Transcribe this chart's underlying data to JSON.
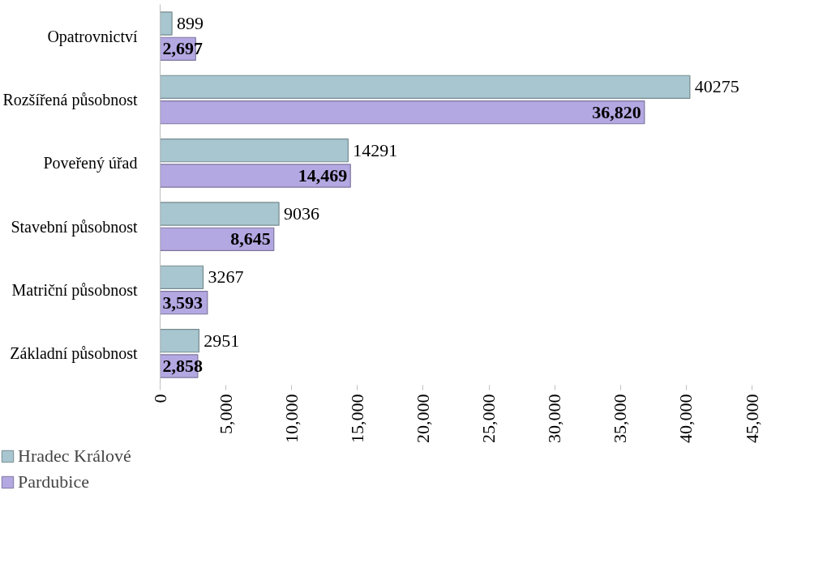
{
  "chart_data": {
    "type": "bar",
    "orientation": "horizontal",
    "categories": [
      "Opatrovnictví",
      "Rozšířená působnost",
      "Poveřený úřad",
      "Stavební působnost",
      "Matriční působnost",
      "Základní působnost"
    ],
    "series": [
      {
        "name": "Hradec Králové",
        "color": "#a8c6cf",
        "values": [
          899,
          40275,
          14291,
          9036,
          3267,
          2951
        ],
        "value_labels": [
          "899",
          "40275",
          "14291",
          "9036",
          "3267",
          "2951"
        ]
      },
      {
        "name": "Pardubice",
        "color": "#b4a8e2",
        "values": [
          2697,
          36820,
          14469,
          8645,
          3593,
          2858
        ],
        "value_labels": [
          "2,697",
          "36,820",
          "14,469",
          "8,645",
          "3,593",
          "2,858"
        ]
      }
    ],
    "xlim": [
      0,
      45000
    ],
    "xticks": [
      {
        "value": 0,
        "label": "0"
      },
      {
        "value": 5000,
        "label": "5,000"
      },
      {
        "value": 10000,
        "label": "10,000"
      },
      {
        "value": 15000,
        "label": "15,000"
      },
      {
        "value": 20000,
        "label": "20,000"
      },
      {
        "value": 25000,
        "label": "25,000"
      },
      {
        "value": 30000,
        "label": "30,000"
      },
      {
        "value": 35000,
        "label": "35,000"
      },
      {
        "value": 40000,
        "label": "40,000"
      },
      {
        "value": 45000,
        "label": "45,000"
      }
    ],
    "grid": false,
    "legend": "bottom left"
  }
}
